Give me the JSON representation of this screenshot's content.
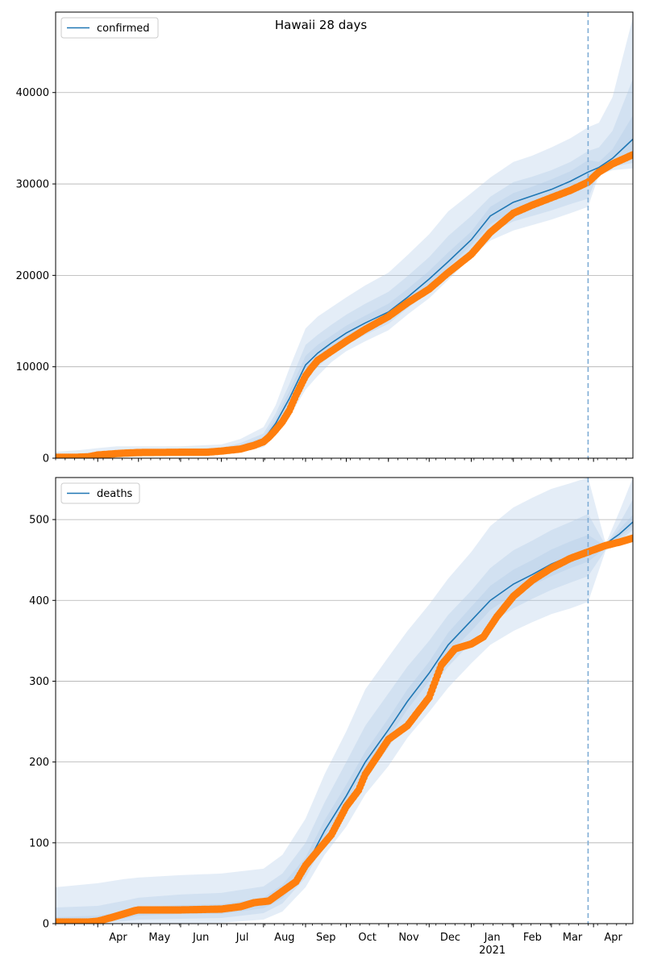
{
  "figure_title": "Hawaii 28 days",
  "colors": {
    "line": "#1f77b4",
    "band": "#aec7e8",
    "observed": "#ff7f0e",
    "grid": "#b0b0b0",
    "forecast_marker": "#7fadd6"
  },
  "x_axis": {
    "start": "2020-03-01",
    "end": "2021-04-30",
    "forecast_start": "2021-03-28",
    "month_ticks": [
      {
        "date": "2020-04-01",
        "label": "Apr"
      },
      {
        "date": "2020-05-01",
        "label": "May"
      },
      {
        "date": "2020-06-01",
        "label": "Jun"
      },
      {
        "date": "2020-07-01",
        "label": "Jul"
      },
      {
        "date": "2020-08-01",
        "label": "Aug"
      },
      {
        "date": "2020-09-01",
        "label": "Sep"
      },
      {
        "date": "2020-10-01",
        "label": "Oct"
      },
      {
        "date": "2020-11-01",
        "label": "Nov"
      },
      {
        "date": "2020-12-01",
        "label": "Dec"
      },
      {
        "date": "2021-01-01",
        "label": "Jan"
      },
      {
        "date": "2021-02-01",
        "label": "Feb"
      },
      {
        "date": "2021-03-01",
        "label": "Mar"
      },
      {
        "date": "2021-04-01",
        "label": "Apr"
      }
    ],
    "year_label": {
      "date": "2021-01-01",
      "label": "2021"
    }
  },
  "chart_data": [
    {
      "type": "line",
      "legend": "confirmed",
      "legend_position": "top-left",
      "grid": "horizontal",
      "ylim": [
        0,
        48800
      ],
      "yticks": [
        0,
        10000,
        20000,
        30000,
        40000
      ],
      "ytick_labels": [
        "0",
        "10000",
        "20000",
        "30000",
        "40000"
      ],
      "model": {
        "x": [
          "2020-03-01",
          "2020-03-20",
          "2020-04-01",
          "2020-04-15",
          "2020-05-01",
          "2020-06-01",
          "2020-07-01",
          "2020-07-15",
          "2020-08-01",
          "2020-08-10",
          "2020-08-20",
          "2020-09-01",
          "2020-09-10",
          "2020-09-20",
          "2020-10-01",
          "2020-10-15",
          "2020-11-01",
          "2020-11-15",
          "2020-12-01",
          "2020-12-15",
          "2021-01-01",
          "2021-01-15",
          "2021-02-01",
          "2021-02-15",
          "2021-03-01",
          "2021-03-15",
          "2021-03-28",
          "2021-04-05",
          "2021-04-15",
          "2021-04-30"
        ],
        "median": [
          100,
          150,
          350,
          550,
          650,
          650,
          800,
          1200,
          2000,
          3800,
          6500,
          10200,
          11500,
          12600,
          13700,
          14800,
          16000,
          17600,
          19600,
          21500,
          23900,
          26500,
          28000,
          28700,
          29400,
          30300,
          31300,
          31800,
          32800,
          34900
        ],
        "bands": [
          {
            "lower": [
              0,
              0,
              0,
              100,
              200,
              250,
              400,
              700,
              1200,
              2500,
              4500,
              7500,
              9000,
              10500,
              11700,
              12800,
              14000,
              15700,
              17500,
              19500,
              22000,
              23800,
              24900,
              25500,
              26100,
              26800,
              27500,
              31000,
              31500,
              31700
            ],
            "upper": [
              700,
              900,
              1100,
              1300,
              1300,
              1300,
              1500,
              2100,
              3400,
              5800,
              9800,
              14200,
              15500,
              16500,
              17600,
              18900,
              20300,
              22200,
              24500,
              27000,
              29000,
              30700,
              32400,
              33100,
              34000,
              35000,
              36200,
              36700,
              39500,
              48200
            ]
          },
          {
            "lower": [
              50,
              60,
              150,
              350,
              420,
              430,
              560,
              900,
              1600,
              3100,
              5300,
              8600,
              10000,
              11300,
              12400,
              13500,
              14700,
              16400,
              18300,
              20300,
              22700,
              24700,
              25900,
              26500,
              27100,
              27800,
              28400,
              31300,
              31900,
              32300
            ],
            "upper": [
              350,
              500,
              700,
              900,
              950,
              950,
              1150,
              1650,
              2700,
              4900,
              8100,
              12400,
              13500,
              14600,
              15700,
              16900,
              18200,
              19900,
              22000,
              24300,
              26500,
              28600,
              30200,
              30800,
              31500,
              32400,
              33600,
              34000,
              35800,
              41500
            ]
          },
          {
            "lower": [
              70,
              100,
              250,
              450,
              540,
              540,
              680,
              1050,
              1800,
              3400,
              5900,
              9400,
              10700,
              11900,
              13000,
              14100,
              15300,
              17000,
              19000,
              20900,
              23300,
              25600,
              27000,
              27600,
              28300,
              29100,
              29800,
              31500,
              32300,
              33300
            ],
            "upper": [
              150,
              250,
              500,
              700,
              800,
              800,
              950,
              1400,
              2300,
              4300,
              7300,
              11200,
              12400,
              13400,
              14500,
              15600,
              16900,
              18500,
              20500,
              22500,
              24800,
              27500,
              29000,
              29700,
              30500,
              31400,
              32600,
              32400,
              33800,
              37500
            ]
          }
        ]
      },
      "observed": {
        "x": [
          "2020-03-01",
          "2020-03-15",
          "2020-03-25",
          "2020-04-01",
          "2020-04-10",
          "2020-04-20",
          "2020-05-01",
          "2020-06-01",
          "2020-06-20",
          "2020-07-01",
          "2020-07-15",
          "2020-07-25",
          "2020-08-01",
          "2020-08-05",
          "2020-08-10",
          "2020-08-15",
          "2020-08-20",
          "2020-08-25",
          "2020-09-01",
          "2020-09-05",
          "2020-09-10",
          "2020-09-20",
          "2020-10-01",
          "2020-10-15",
          "2020-11-01",
          "2020-11-15",
          "2020-12-01",
          "2020-12-15",
          "2021-01-01",
          "2021-01-15",
          "2021-02-01",
          "2021-02-15",
          "2021-03-01",
          "2021-03-15",
          "2021-03-28",
          "2021-04-05",
          "2021-04-15",
          "2021-04-30"
        ],
        "values": [
          100,
          100,
          150,
          350,
          450,
          550,
          620,
          650,
          650,
          780,
          1000,
          1400,
          1800,
          2300,
          3100,
          4000,
          5200,
          6900,
          9000,
          9800,
          10700,
          11700,
          12800,
          14100,
          15500,
          17000,
          18500,
          20300,
          22300,
          24700,
          26800,
          27700,
          28500,
          29300,
          30200,
          31300,
          32200,
          33200
        ]
      }
    },
    {
      "type": "line",
      "legend": "deaths",
      "legend_position": "top-left",
      "grid": "horizontal",
      "ylim": [
        0,
        552
      ],
      "yticks": [
        0,
        100,
        200,
        300,
        400,
        500
      ],
      "ytick_labels": [
        "0",
        "100",
        "200",
        "300",
        "400",
        "500"
      ],
      "model": {
        "x": [
          "2020-03-01",
          "2020-04-01",
          "2020-04-20",
          "2020-05-01",
          "2020-06-01",
          "2020-07-01",
          "2020-08-01",
          "2020-08-15",
          "2020-09-01",
          "2020-09-15",
          "2020-10-01",
          "2020-10-15",
          "2020-11-01",
          "2020-11-15",
          "2020-12-01",
          "2020-12-15",
          "2021-01-01",
          "2021-01-15",
          "2021-02-01",
          "2021-02-15",
          "2021-03-01",
          "2021-03-15",
          "2021-03-28",
          "2021-04-10",
          "2021-04-20",
          "2021-04-30"
        ],
        "median": [
          2,
          3,
          10,
          15,
          17,
          17,
          25,
          38,
          70,
          115,
          158,
          200,
          240,
          275,
          310,
          345,
          375,
          400,
          420,
          432,
          445,
          455,
          463,
          470,
          482,
          497
        ],
        "bands": [
          {
            "lower": [
              0,
              0,
              0,
              0,
              0,
              1,
              5,
              15,
              45,
              85,
              120,
              160,
              195,
              230,
              262,
              292,
              322,
              345,
              362,
              373,
              383,
              390,
              398,
              462,
              470,
              482
            ],
            "upper": [
              45,
              50,
              55,
              57,
              60,
              62,
              68,
              85,
              130,
              185,
              238,
              290,
              330,
              362,
              395,
              427,
              460,
              492,
              515,
              527,
              538,
              545,
              552,
              470,
              510,
              552
            ]
          },
          {
            "lower": [
              0,
              1,
              3,
              5,
              6,
              7,
              13,
              25,
              57,
              100,
              140,
              180,
              218,
              253,
              288,
              318,
              348,
              372,
              390,
              402,
              413,
              422,
              430,
              463,
              474,
              487
            ],
            "upper": [
              20,
              22,
              28,
              32,
              36,
              38,
              46,
              62,
              100,
              150,
              200,
              245,
              285,
              318,
              350,
              382,
              412,
              440,
              462,
              474,
              487,
              497,
              507,
              468,
              495,
              525
            ]
          },
          {
            "lower": [
              0,
              2,
              6,
              10,
              12,
              12,
              19,
              31,
              63,
              108,
              150,
              192,
              230,
              265,
              300,
              333,
              362,
              388,
              407,
              419,
              430,
              440,
              448,
              465,
              478,
              492
            ],
            "upper": [
              8,
              10,
              15,
              20,
              23,
              24,
              32,
              48,
              82,
              128,
              172,
              213,
              254,
              290,
              324,
              360,
              392,
              418,
              438,
              450,
              463,
              473,
              481,
              467,
              488,
              506
            ]
          }
        ]
      },
      "observed": {
        "x": [
          "2020-03-01",
          "2020-03-25",
          "2020-04-01",
          "2020-04-10",
          "2020-04-20",
          "2020-04-28",
          "2020-05-01",
          "2020-06-01",
          "2020-07-01",
          "2020-07-15",
          "2020-07-25",
          "2020-08-05",
          "2020-08-15",
          "2020-08-25",
          "2020-09-01",
          "2020-09-10",
          "2020-09-15",
          "2020-09-20",
          "2020-10-01",
          "2020-10-10",
          "2020-10-15",
          "2020-10-25",
          "2020-11-01",
          "2020-11-15",
          "2020-12-01",
          "2020-12-10",
          "2020-12-20",
          "2021-01-01",
          "2021-01-10",
          "2021-01-20",
          "2021-02-01",
          "2021-02-15",
          "2021-03-01",
          "2021-03-15",
          "2021-03-28",
          "2021-04-10",
          "2021-04-20",
          "2021-04-30"
        ],
        "values": [
          2,
          2,
          3,
          7,
          12,
          16,
          17,
          17,
          18,
          21,
          26,
          28,
          40,
          52,
          72,
          90,
          100,
          110,
          145,
          165,
          185,
          210,
          228,
          245,
          280,
          320,
          340,
          346,
          355,
          380,
          405,
          425,
          440,
          452,
          460,
          468,
          472,
          477
        ]
      }
    }
  ]
}
